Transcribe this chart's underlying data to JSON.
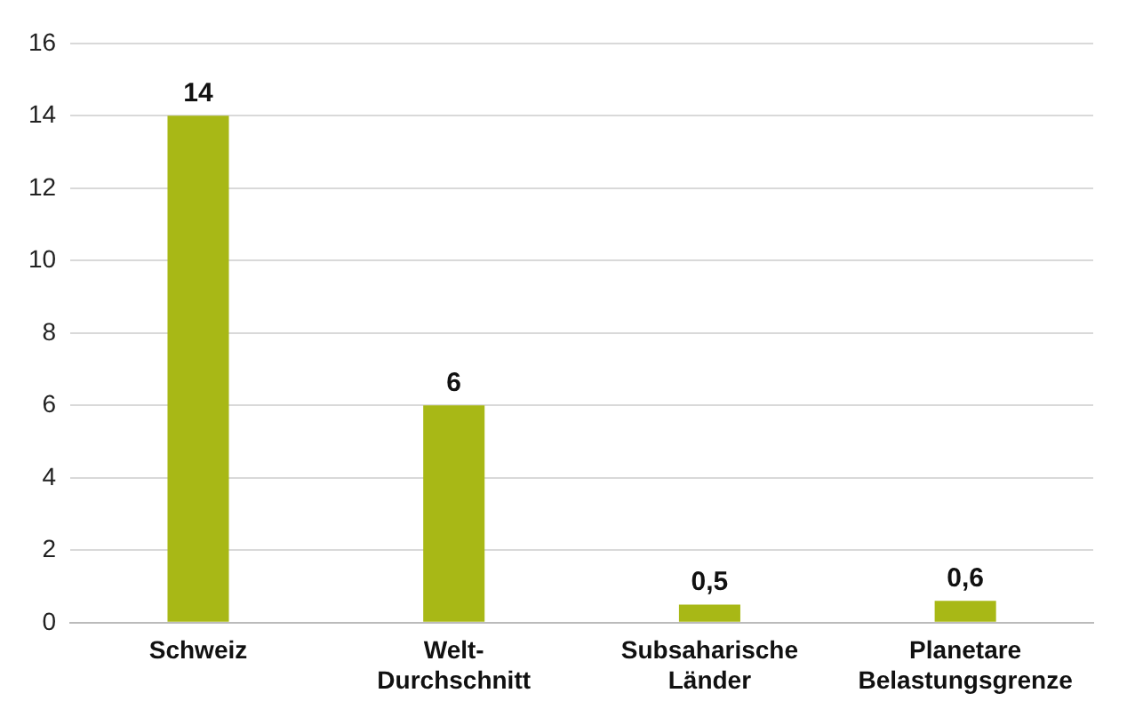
{
  "chart_data": {
    "type": "bar",
    "categories": [
      "Schweiz",
      "Welt-Durchschnitt",
      "Subsaharische Länder",
      "Planetare Belastungsgrenze"
    ],
    "values": [
      14,
      6,
      0.5,
      0.6
    ],
    "value_labels": [
      "14",
      "6",
      "0,5",
      "0,6"
    ],
    "color": "#a8b816",
    "ylim": [
      0,
      16
    ],
    "yticks": [
      0,
      2,
      4,
      6,
      8,
      10,
      12,
      14,
      16
    ],
    "grid": "y",
    "legend": false
  }
}
